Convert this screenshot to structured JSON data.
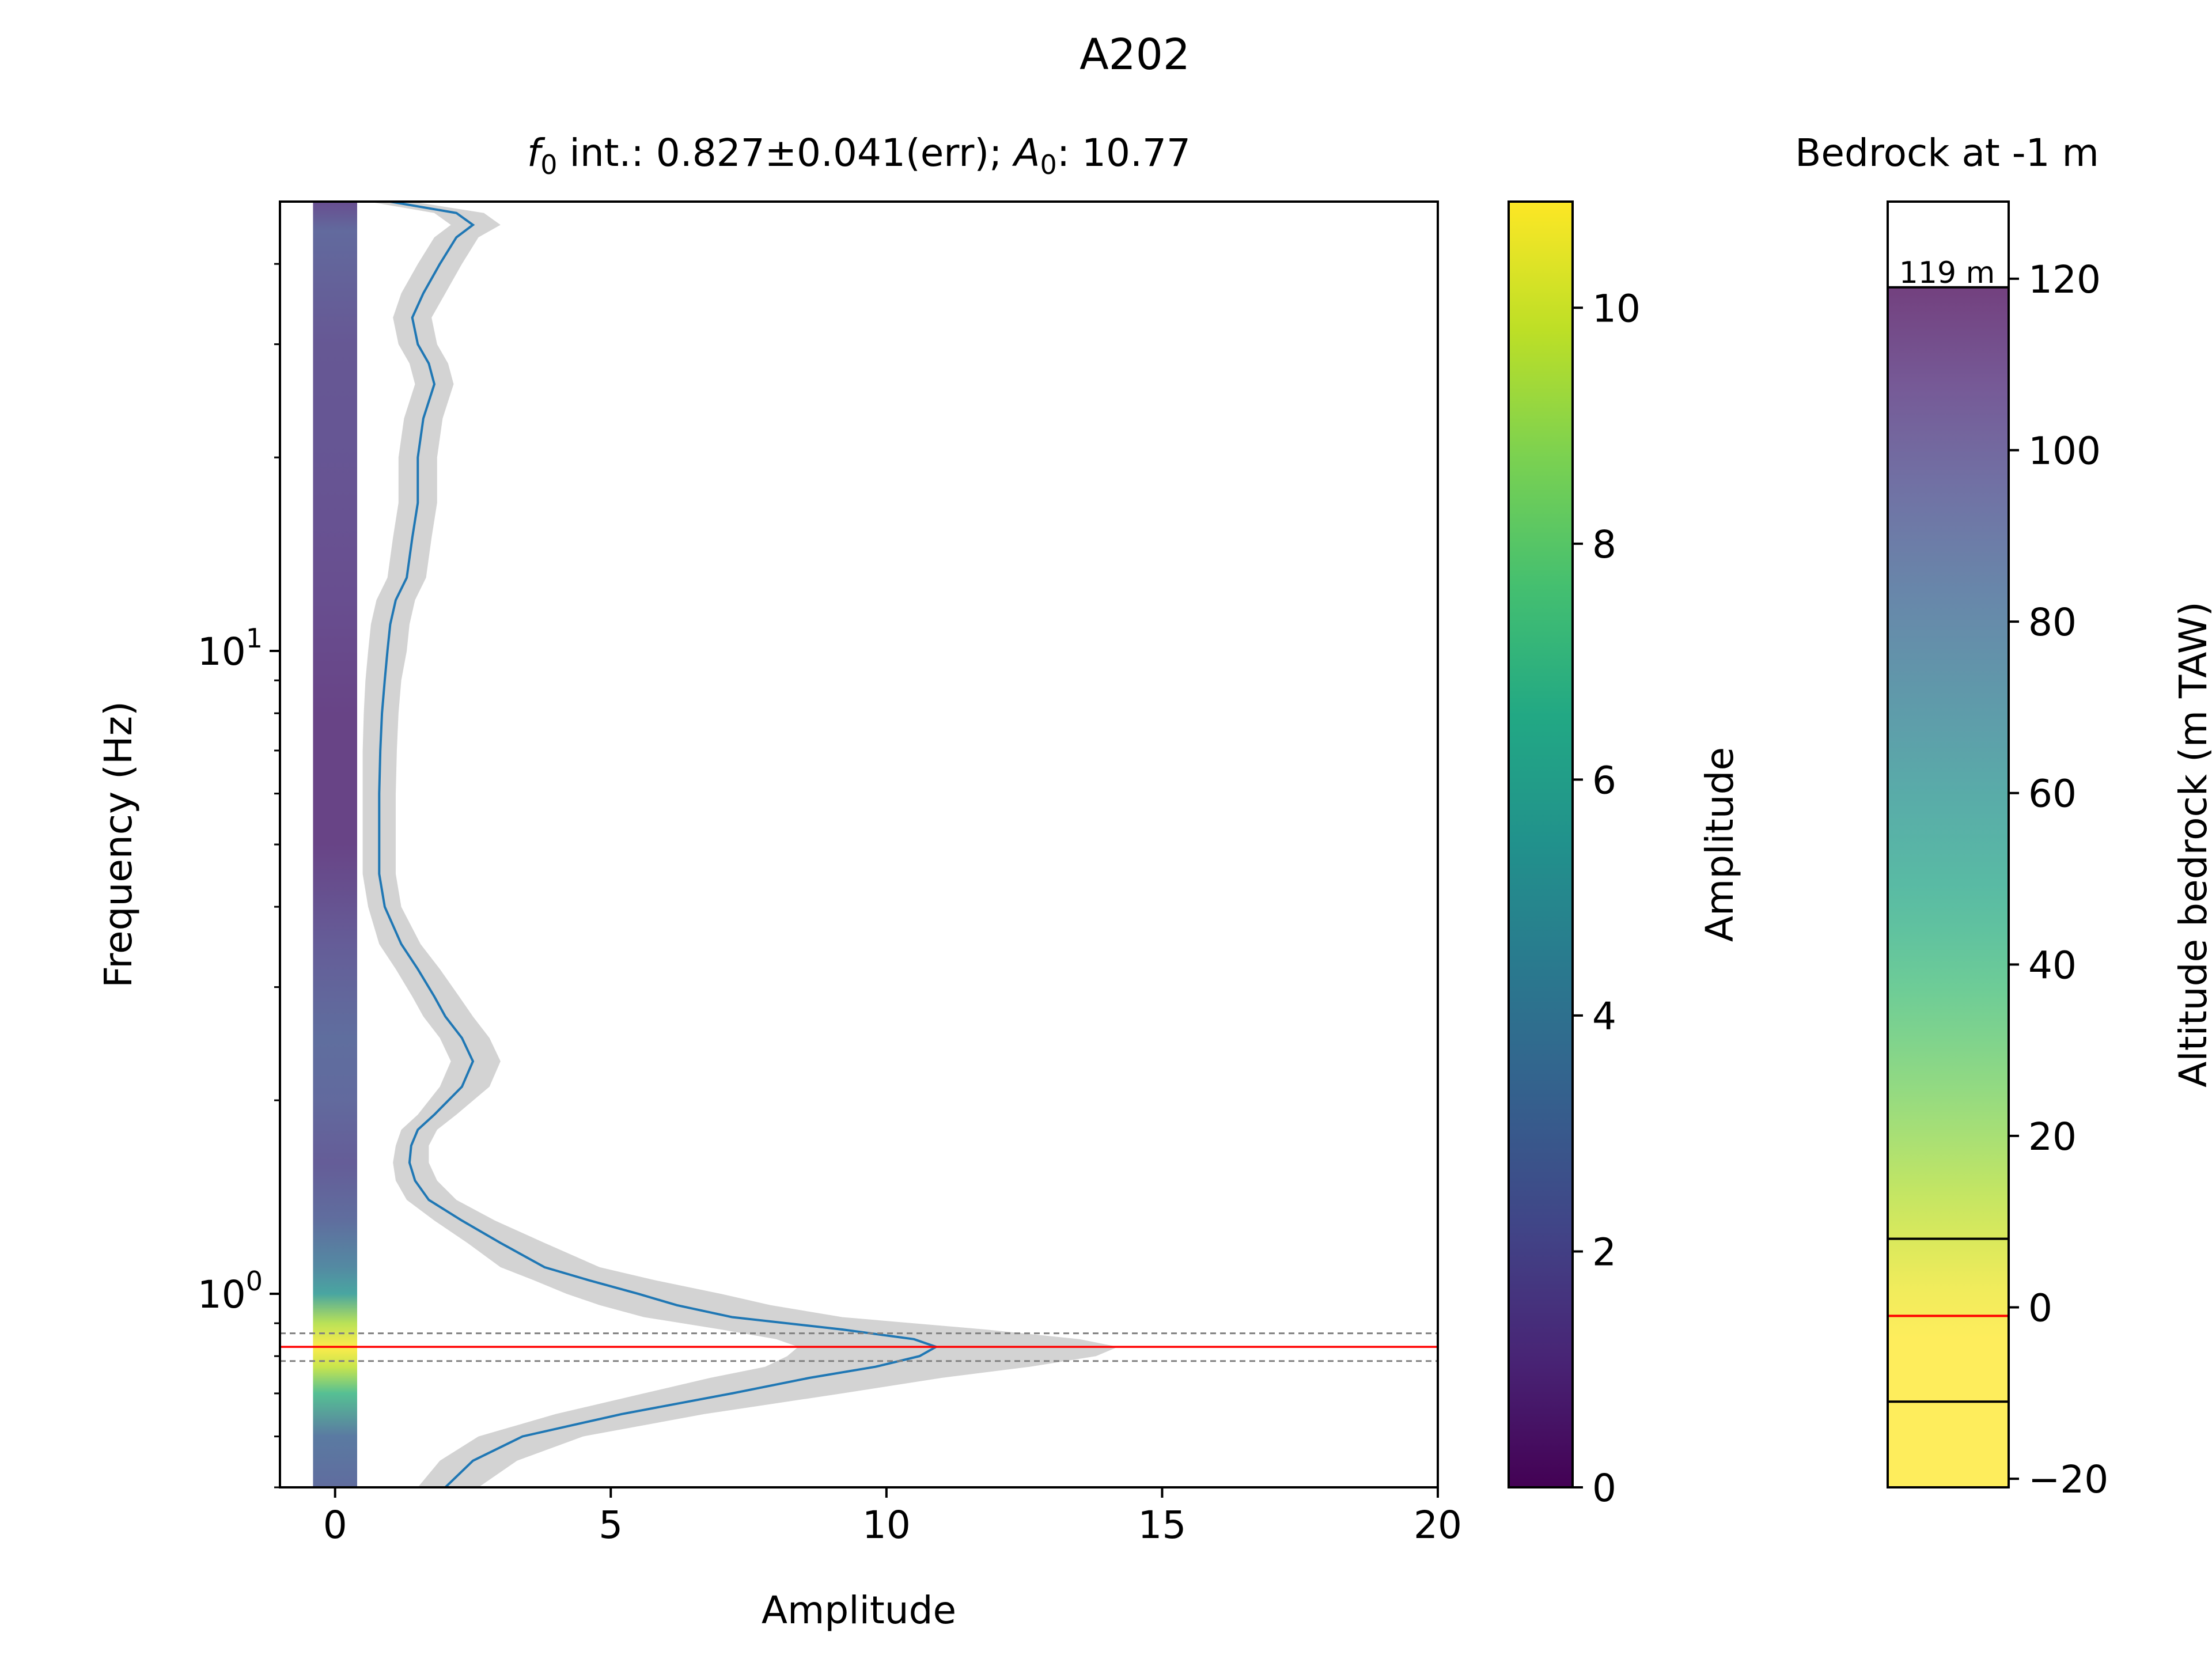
{
  "figure": {
    "title": "A202"
  },
  "chart_data": [
    {
      "type": "line",
      "panel": "hvsr-curve",
      "subtitle_parts": {
        "f_symbol": "f",
        "f_sub": "0",
        "f_text": " int.: 0.827±0.041(err); ",
        "a_symbol": "A",
        "a_sub": "0",
        "a_text": ": 10.77"
      },
      "xlabel": "Amplitude",
      "ylabel": "Frequency (Hz)",
      "xlim": [
        -1,
        20
      ],
      "ylim": [
        0.5,
        50
      ],
      "y_scale": "log",
      "x_ticks": [
        {
          "v": 0,
          "label": "0"
        },
        {
          "v": 5,
          "label": "5"
        },
        {
          "v": 10,
          "label": "10"
        },
        {
          "v": 15,
          "label": "15"
        },
        {
          "v": 20,
          "label": "20"
        }
      ],
      "y_major_ticks": [
        {
          "v": 1,
          "base": "10",
          "exp": "0"
        },
        {
          "v": 10,
          "base": "10",
          "exp": "1"
        }
      ],
      "y_minor_ticks": [
        0.5,
        0.6,
        0.7,
        0.8,
        0.9,
        2,
        3,
        4,
        5,
        6,
        7,
        8,
        9,
        20,
        30,
        40
      ],
      "f0": 0.827,
      "f0_err": 0.041,
      "A0": 10.77,
      "curve_color": "#1f77b4",
      "band_color": "#d3d3d3",
      "f0_line_color": "#ff0000",
      "err_line_color": "#808080",
      "series": [
        {
          "freq": [
            0.5,
            0.55,
            0.6,
            0.65,
            0.7,
            0.74,
            0.77,
            0.8,
            0.827,
            0.85,
            0.88,
            0.92,
            0.96,
            1.0,
            1.05,
            1.1,
            1.2,
            1.3,
            1.4,
            1.5,
            1.6,
            1.7,
            1.8,
            1.9,
            2.1,
            2.3,
            2.5,
            2.7,
            2.9,
            3.2,
            3.5,
            4.0,
            4.5,
            5.0,
            6.0,
            7.0,
            8.0,
            9.0,
            10.0,
            11.0,
            12.0,
            13.0,
            15.0,
            17.0,
            20.0,
            23.0,
            26.0,
            28.0,
            30.0,
            33.0,
            36.0,
            40.0,
            44.0,
            46.0,
            48.0,
            50.0
          ],
          "amp": [
            2.0,
            2.5,
            3.4,
            5.2,
            7.2,
            8.6,
            9.8,
            10.6,
            10.9,
            10.5,
            9.2,
            7.2,
            6.2,
            5.5,
            4.6,
            3.8,
            3.0,
            2.3,
            1.7,
            1.45,
            1.35,
            1.38,
            1.5,
            1.8,
            2.3,
            2.5,
            2.3,
            2.0,
            1.8,
            1.5,
            1.2,
            0.9,
            0.8,
            0.8,
            0.8,
            0.82,
            0.85,
            0.9,
            0.95,
            1.0,
            1.1,
            1.3,
            1.4,
            1.5,
            1.5,
            1.6,
            1.8,
            1.7,
            1.5,
            1.4,
            1.6,
            1.9,
            2.2,
            2.5,
            2.2,
            1.0
          ],
          "amp_lower": [
            1.5,
            1.9,
            2.6,
            4.0,
            5.6,
            6.8,
            7.8,
            8.2,
            8.4,
            8.0,
            7.0,
            5.6,
            4.8,
            4.2,
            3.6,
            3.0,
            2.4,
            1.8,
            1.3,
            1.1,
            1.05,
            1.1,
            1.2,
            1.5,
            1.9,
            2.1,
            1.9,
            1.6,
            1.4,
            1.1,
            0.8,
            0.6,
            0.5,
            0.5,
            0.5,
            0.5,
            0.52,
            0.55,
            0.6,
            0.65,
            0.75,
            0.95,
            1.05,
            1.15,
            1.15,
            1.25,
            1.45,
            1.35,
            1.15,
            1.05,
            1.2,
            1.5,
            1.8,
            2.1,
            1.8,
            0.6
          ],
          "amp_upper": [
            2.6,
            3.3,
            4.5,
            6.7,
            9.2,
            11.0,
            12.6,
            13.8,
            14.2,
            13.5,
            11.8,
            9.2,
            7.9,
            7.0,
            5.8,
            4.8,
            3.8,
            2.9,
            2.2,
            1.85,
            1.7,
            1.7,
            1.85,
            2.2,
            2.8,
            3.0,
            2.8,
            2.5,
            2.25,
            1.9,
            1.55,
            1.2,
            1.1,
            1.1,
            1.1,
            1.12,
            1.15,
            1.2,
            1.3,
            1.35,
            1.45,
            1.65,
            1.75,
            1.85,
            1.85,
            1.95,
            2.15,
            2.05,
            1.85,
            1.75,
            2.0,
            2.3,
            2.6,
            3.0,
            2.7,
            1.4
          ]
        }
      ],
      "spectrogram_strip": {
        "x_range": [
          -0.4,
          0.4
        ],
        "stops": [
          {
            "f": 0.5,
            "amp": 2.5
          },
          {
            "f": 0.6,
            "amp": 3.2
          },
          {
            "f": 0.7,
            "amp": 7.0
          },
          {
            "f": 0.77,
            "amp": 9.8
          },
          {
            "f": 0.827,
            "amp": 10.9
          },
          {
            "f": 0.9,
            "amp": 9.5
          },
          {
            "f": 1.0,
            "amp": 5.5
          },
          {
            "f": 1.1,
            "amp": 4.0
          },
          {
            "f": 1.3,
            "amp": 2.6
          },
          {
            "f": 1.6,
            "amp": 1.8
          },
          {
            "f": 2.0,
            "amp": 2.4
          },
          {
            "f": 2.5,
            "amp": 2.6
          },
          {
            "f": 3.5,
            "amp": 1.8
          },
          {
            "f": 5.0,
            "amp": 0.8
          },
          {
            "f": 8.0,
            "amp": 0.8
          },
          {
            "f": 12.0,
            "amp": 1.2
          },
          {
            "f": 20.0,
            "amp": 1.5
          },
          {
            "f": 30.0,
            "amp": 1.6
          },
          {
            "f": 45.0,
            "amp": 2.4
          },
          {
            "f": 50.0,
            "amp": 1.2
          }
        ]
      }
    },
    {
      "type": "heatmap",
      "panel": "amplitude-colorbar",
      "colormap": "viridis",
      "label": "Amplitude",
      "range": [
        0,
        10.9
      ],
      "ticks": [
        {
          "v": 0,
          "label": "0"
        },
        {
          "v": 2,
          "label": "2"
        },
        {
          "v": 4,
          "label": "4"
        },
        {
          "v": 6,
          "label": "6"
        },
        {
          "v": 8,
          "label": "8"
        },
        {
          "v": 10,
          "label": "10"
        }
      ]
    },
    {
      "type": "bar",
      "panel": "bedrock-column",
      "title": "Bedrock at -1 m",
      "ylabel": "Altitude bedrock (m TAW)",
      "ylim": [
        -21,
        129
      ],
      "surface": 119,
      "surface_label": "119 m",
      "bedrock": -1,
      "bedrock_err_lines": [
        8,
        -11
      ],
      "bedrock_line_color": "#ff0000",
      "ticks": [
        {
          "v": -20,
          "label": "−20"
        },
        {
          "v": 0,
          "label": "0"
        },
        {
          "v": 20,
          "label": "20"
        },
        {
          "v": 40,
          "label": "40"
        },
        {
          "v": 60,
          "label": "60"
        },
        {
          "v": 80,
          "label": "80"
        },
        {
          "v": 100,
          "label": "100"
        },
        {
          "v": 120,
          "label": "120"
        }
      ],
      "colormap": "viridis_r",
      "color_range": [
        -1,
        119
      ]
    }
  ]
}
